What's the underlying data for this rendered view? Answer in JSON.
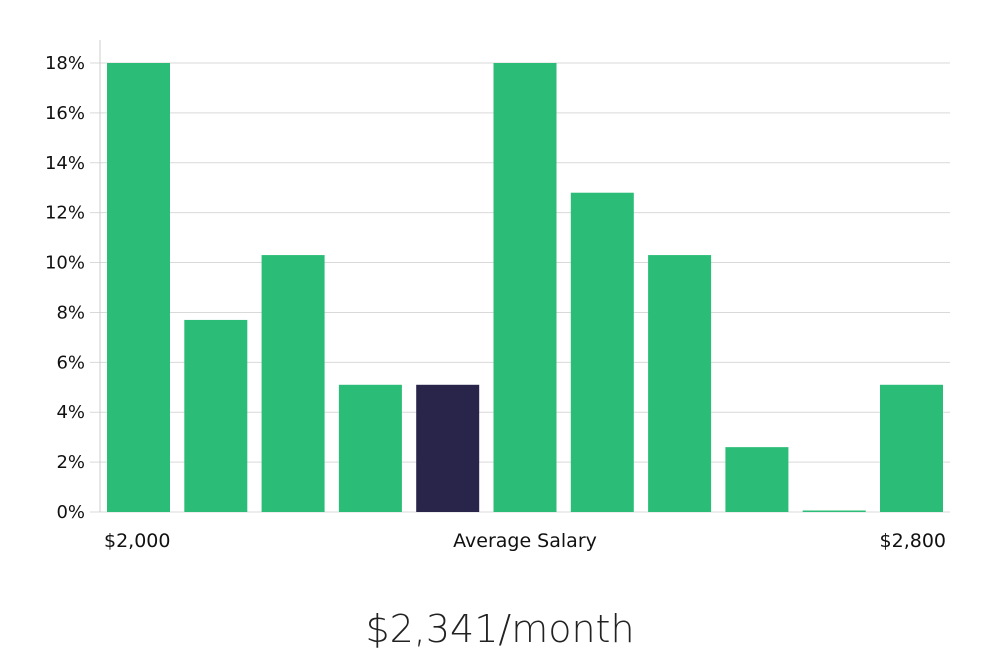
{
  "salary_label": "$2,341/month",
  "colors": {
    "bar": "#2bbd77",
    "highlight": "#29254a",
    "grid": "#d9d9d9",
    "axis": "#cccccc",
    "text": "#111111"
  },
  "chart_data": {
    "type": "bar",
    "title": "",
    "xlabel": "Average Salary",
    "ylabel": "",
    "x_range_labels": [
      "$2,000",
      "$2,800"
    ],
    "ylim": [
      0,
      18
    ],
    "yticks": [
      0,
      2,
      4,
      6,
      8,
      10,
      12,
      14,
      16,
      18
    ],
    "ytick_labels": [
      "0%",
      "2%",
      "4%",
      "6%",
      "8%",
      "10%",
      "12%",
      "14%",
      "16%",
      "18%"
    ],
    "values": [
      18.0,
      7.7,
      10.3,
      5.1,
      5.1,
      18.0,
      12.8,
      10.3,
      2.6,
      0.0,
      5.1
    ],
    "highlight_index": 4,
    "grid": true,
    "legend": "none"
  }
}
